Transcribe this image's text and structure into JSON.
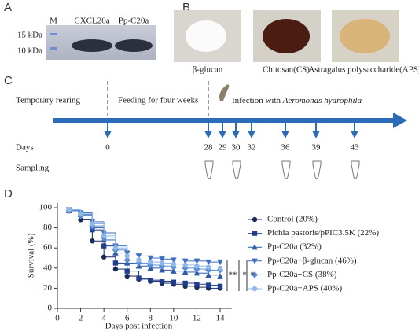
{
  "panels": {
    "a": {
      "label": "A",
      "lanes": [
        "M",
        "CXCL20a",
        "Pp-C20a"
      ],
      "markers": [
        "15 kDa",
        "10 kDa"
      ]
    },
    "b": {
      "label": "B",
      "items": [
        "β-glucan",
        "Chitosan(CS)",
        "Astragalus polysaccharide(APS)"
      ]
    },
    "c": {
      "label": "C",
      "phases": [
        "Temporary rearing",
        "Feeding for four weeks",
        "Infection with "
      ],
      "pathogen": "Aeromonas hydrophila",
      "days_label": "Days",
      "days": [
        "0",
        "28",
        "29",
        "30",
        "32",
        "36",
        "39",
        "43"
      ],
      "sampling_label": "Sampling"
    },
    "d": {
      "label": "D"
    }
  },
  "chart_data": {
    "type": "step",
    "xlabel": "Days post infection",
    "ylabel": "Survival (%)",
    "x": [
      1,
      2,
      3,
      4,
      5,
      6,
      7,
      8,
      9,
      10,
      11,
      12,
      13,
      14
    ],
    "xlim": [
      0,
      15
    ],
    "ylim": [
      0,
      105
    ],
    "xticks": [
      0,
      2,
      4,
      6,
      8,
      10,
      12,
      14
    ],
    "yticks": [
      0,
      20,
      40,
      60,
      80,
      100
    ],
    "series": [
      {
        "name": "Control (20%)",
        "color": "#1b2a5a",
        "marker": "circle",
        "values": [
          97,
          88,
          67,
          51,
          39,
          32,
          29,
          27,
          25,
          24,
          22,
          21,
          20,
          20
        ]
      },
      {
        "name": "Pichia pastoris/pPIC3.5K (22%)",
        "color": "#1f3d8c",
        "marker": "square",
        "values": [
          97,
          93,
          78,
          62,
          45,
          37,
          30,
          28,
          27,
          26,
          25,
          24,
          23,
          22
        ]
      },
      {
        "name": "Pp-C20a (32%)",
        "color": "#2e5aa8",
        "marker": "triangle-up",
        "values": [
          97,
          93,
          80,
          68,
          55,
          45,
          42,
          40,
          38,
          37,
          36,
          35,
          33,
          32
        ]
      },
      {
        "name": "Pp-C20a+β-glucan (46%)",
        "color": "#3c6dbf",
        "marker": "triangle-down",
        "values": [
          98,
          95,
          86,
          75,
          62,
          55,
          52,
          50,
          49,
          48,
          47,
          47,
          46,
          46
        ]
      },
      {
        "name": "Pp-C20a+CS (38%)",
        "color": "#5a90d6",
        "marker": "diamond",
        "values": [
          97,
          92,
          82,
          70,
          58,
          48,
          45,
          43,
          42,
          41,
          40,
          39,
          38,
          38
        ]
      },
      {
        "name": "Pp-C20a+APS (40%)",
        "color": "#8fb8e8",
        "marker": "circle",
        "values": [
          98,
          94,
          84,
          72,
          60,
          52,
          48,
          46,
          45,
          44,
          43,
          42,
          41,
          40
        ]
      }
    ],
    "annotations": [
      "**",
      "*",
      "*"
    ]
  }
}
